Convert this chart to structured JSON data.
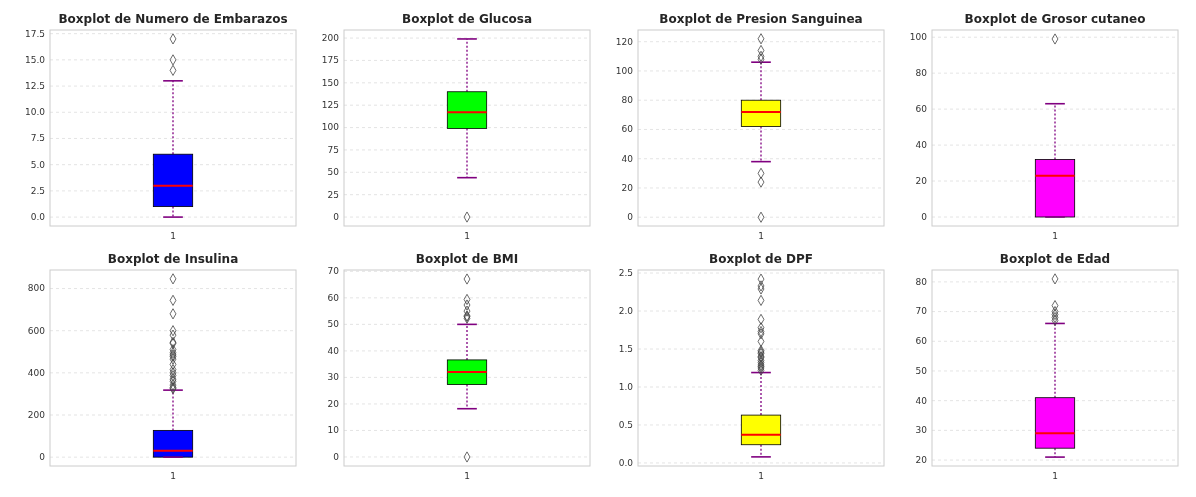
{
  "chart_data": [
    {
      "type": "box",
      "title": "Boxplot de Numero de Embarazos",
      "categories": [
        "1"
      ],
      "color": "#0000ff",
      "boxes": [
        {
          "low": 0,
          "q1": 1,
          "median": 3,
          "q3": 6,
          "high": 13,
          "outliers": [
            14,
            15,
            17
          ]
        }
      ],
      "ylim": [
        -0.85,
        17.85
      ],
      "yticks": [
        {
          "value": 0,
          "label": "0.0"
        },
        {
          "value": 2.5,
          "label": "2.5"
        },
        {
          "value": 5,
          "label": "5.0"
        },
        {
          "value": 7.5,
          "label": "7.5"
        },
        {
          "value": 10,
          "label": "10.0"
        },
        {
          "value": 12.5,
          "label": "12.5"
        },
        {
          "value": 15,
          "label": "15.0"
        },
        {
          "value": 17.5,
          "label": "17.5"
        }
      ],
      "grid": "y",
      "marker": "diamond"
    },
    {
      "type": "box",
      "title": "Boxplot de Glucosa",
      "categories": [
        "1"
      ],
      "color": "#00ff00",
      "boxes": [
        {
          "low": 44,
          "q1": 99,
          "median": 117,
          "q3": 140,
          "high": 199,
          "outliers": [
            0
          ]
        }
      ],
      "ylim": [
        -10,
        209
      ],
      "yticks": [
        0,
        25,
        50,
        75,
        100,
        125,
        150,
        175,
        200
      ],
      "grid": "y",
      "marker": "diamond"
    },
    {
      "type": "box",
      "title": "Boxplot de Presion Sanguinea",
      "categories": [
        "1"
      ],
      "color": "#ffff00",
      "boxes": [
        {
          "low": 38,
          "q1": 62,
          "median": 72,
          "q3": 80,
          "high": 106,
          "outliers": [
            0,
            24,
            30,
            108,
            110,
            114,
            122
          ]
        }
      ],
      "ylim": [
        -6,
        128
      ],
      "yticks": [
        0,
        20,
        40,
        60,
        80,
        100,
        120
      ],
      "grid": "y",
      "marker": "diamond"
    },
    {
      "type": "box",
      "title": "Boxplot de Grosor cutaneo",
      "categories": [
        "1"
      ],
      "color": "#ff00ff",
      "boxes": [
        {
          "low": 0,
          "q1": 0,
          "median": 23,
          "q3": 32,
          "high": 63,
          "outliers": [
            99
          ]
        }
      ],
      "ylim": [
        -5,
        104
      ],
      "yticks": [
        0,
        20,
        40,
        60,
        80,
        100
      ],
      "grid": "y",
      "marker": "diamond"
    },
    {
      "type": "box",
      "title": "Boxplot de Insulina",
      "categories": [
        "1"
      ],
      "color": "#0000ff",
      "boxes": [
        {
          "low": 0,
          "q1": 0,
          "median": 30,
          "q3": 127,
          "high": 318,
          "outliers": [
            325,
            330,
            342,
            360,
            370,
            387,
            400,
            415,
            440,
            465,
            478,
            485,
            495,
            510,
            540,
            545,
            579,
            600,
            680,
            744,
            846
          ]
        }
      ],
      "ylim": [
        -42,
        888
      ],
      "yticks": [
        0,
        200,
        400,
        600,
        800
      ],
      "grid": "y",
      "marker": "diamond"
    },
    {
      "type": "box",
      "title": "Boxplot de BMI",
      "categories": [
        "1"
      ],
      "color": "#00ff00",
      "boxes": [
        {
          "low": 18.2,
          "q1": 27.3,
          "median": 32,
          "q3": 36.6,
          "high": 50,
          "outliers": [
            0,
            52.3,
            52.9,
            53.2,
            55,
            57.3,
            59.4,
            67.1
          ]
        }
      ],
      "ylim": [
        -3.4,
        70.5
      ],
      "yticks": [
        0,
        10,
        20,
        30,
        40,
        50,
        60,
        70
      ],
      "grid": "y",
      "marker": "diamond"
    },
    {
      "type": "box",
      "title": "Boxplot de DPF",
      "categories": [
        "1"
      ],
      "color": "#ffff00",
      "boxes": [
        {
          "low": 0.08,
          "q1": 0.24,
          "median": 0.37,
          "q3": 0.63,
          "high": 1.19,
          "outliers": [
            1.22,
            1.25,
            1.27,
            1.29,
            1.32,
            1.35,
            1.39,
            1.4,
            1.44,
            1.46,
            1.48,
            1.6,
            1.7,
            1.73,
            1.78,
            1.89,
            2.14,
            2.29,
            2.33,
            2.42
          ]
        }
      ],
      "ylim": [
        -0.04,
        2.54
      ],
      "yticks": [
        {
          "value": 0,
          "label": "0.0"
        },
        {
          "value": 0.5,
          "label": "0.5"
        },
        {
          "value": 1,
          "label": "1.0"
        },
        {
          "value": 1.5,
          "label": "1.5"
        },
        {
          "value": 2,
          "label": "2.0"
        },
        {
          "value": 2.5,
          "label": "2.5"
        }
      ],
      "grid": "y",
      "marker": "diamond"
    },
    {
      "type": "box",
      "title": "Boxplot de Edad",
      "categories": [
        "1"
      ],
      "color": "#ff00ff",
      "boxes": [
        {
          "low": 21,
          "q1": 24,
          "median": 29,
          "q3": 41,
          "high": 66,
          "outliers": [
            67,
            68,
            69,
            70,
            72,
            81
          ]
        }
      ],
      "ylim": [
        18,
        84
      ],
      "yticks": [
        20,
        30,
        40,
        50,
        60,
        70,
        80
      ],
      "grid": "y",
      "marker": "diamond"
    }
  ]
}
